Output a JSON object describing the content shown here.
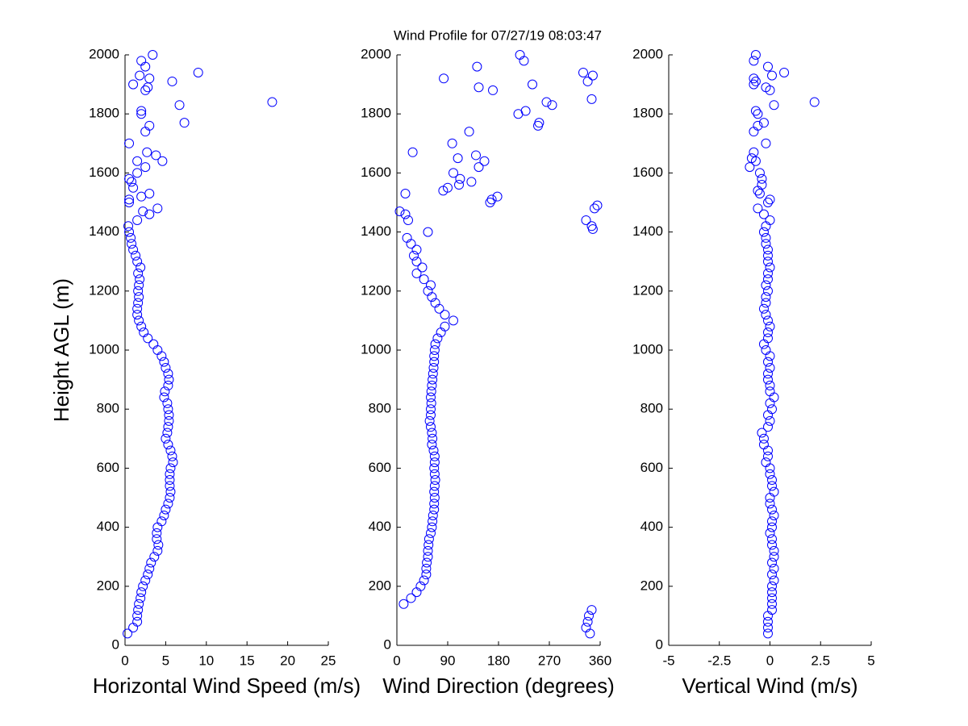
{
  "title": "Wind Profile for  07/27/19 08:03:47",
  "chart_data": [
    {
      "type": "scatter",
      "xlabel": "Horizontal Wind Speed (m/s)",
      "ylabel": "Height AGL (m)",
      "color": "#0000ff",
      "xlim": [
        0,
        25
      ],
      "xticks": [
        0,
        5,
        10,
        15,
        20,
        25
      ],
      "ylim": [
        0,
        2000
      ],
      "yticks": [
        0,
        200,
        400,
        600,
        800,
        1000,
        1200,
        1400,
        1600,
        1800,
        2000
      ],
      "x": [
        0.3,
        1.0,
        1.5,
        1.5,
        1.6,
        1.7,
        1.9,
        2.0,
        2.2,
        2.5,
        2.8,
        3.0,
        3.2,
        3.6,
        4.0,
        4.1,
        3.9,
        3.9,
        4.0,
        4.5,
        4.8,
        5.0,
        5.3,
        5.5,
        5.6,
        5.5,
        5.5,
        5.5,
        5.6,
        5.9,
        5.8,
        5.6,
        5.3,
        5.0,
        5.2,
        5.3,
        5.4,
        5.4,
        5.3,
        5.2,
        4.8,
        4.9,
        5.3,
        5.4,
        5.3,
        5.0,
        4.8,
        4.5,
        4.0,
        3.5,
        2.8,
        2.3,
        2.0,
        1.7,
        1.5,
        1.5,
        1.6,
        1.7,
        1.6,
        1.7,
        1.8,
        1.6,
        1.9,
        1.5,
        1.3,
        1.0,
        0.8,
        0.7,
        0.5,
        0.4,
        1.5,
        3.0,
        2.2,
        4.0,
        0.5,
        0.5,
        2.0,
        3.0,
        1.0,
        0.8,
        0.5,
        1.5,
        2.5,
        1.5,
        4.6,
        3.8,
        2.7,
        0.5,
        2.5,
        3.0,
        7.3,
        2.0,
        2.0,
        6.7,
        18.1,
        2.5,
        2.8,
        1.0,
        5.8,
        3.0,
        1.8,
        9.0,
        2.5,
        2.0,
        3.4
      ],
      "values": [
        40,
        60,
        80,
        100,
        120,
        140,
        160,
        180,
        200,
        220,
        240,
        260,
        280,
        300,
        320,
        340,
        360,
        380,
        400,
        420,
        440,
        460,
        480,
        500,
        520,
        540,
        560,
        580,
        600,
        620,
        640,
        660,
        680,
        700,
        720,
        740,
        760,
        780,
        800,
        820,
        840,
        860,
        880,
        900,
        920,
        940,
        960,
        980,
        1000,
        1020,
        1040,
        1060,
        1080,
        1100,
        1120,
        1140,
        1160,
        1180,
        1200,
        1220,
        1240,
        1260,
        1280,
        1300,
        1320,
        1340,
        1360,
        1380,
        1400,
        1420,
        1440,
        1460,
        1470,
        1480,
        1500,
        1510,
        1520,
        1530,
        1550,
        1570,
        1580,
        1600,
        1620,
        1640,
        1640,
        1660,
        1670,
        1700,
        1740,
        1760,
        1770,
        1800,
        1810,
        1830,
        1840,
        1880,
        1890,
        1900,
        1910,
        1920,
        1930,
        1940,
        1960,
        1980,
        2000
      ]
    },
    {
      "type": "scatter",
      "xlabel": "Wind Direction (degrees)",
      "color": "#0000ff",
      "xlim": [
        0,
        360
      ],
      "xticks": [
        0,
        90,
        180,
        270,
        360
      ],
      "ylim": [
        0,
        2000
      ],
      "yticks": [
        0,
        200,
        400,
        600,
        800,
        1000,
        1200,
        1400,
        1600,
        1800,
        2000
      ],
      "x": [
        342,
        335,
        338,
        340,
        345,
        12,
        25,
        35,
        42,
        48,
        52,
        52,
        53,
        55,
        55,
        56,
        57,
        60,
        62,
        63,
        64,
        66,
        66,
        67,
        66,
        67,
        68,
        67,
        66,
        67,
        67,
        65,
        62,
        63,
        62,
        60,
        58,
        60,
        60,
        61,
        60,
        61,
        62,
        63,
        64,
        65,
        66,
        66,
        67,
        68,
        72,
        78,
        85,
        100,
        85,
        75,
        68,
        62,
        55,
        60,
        48,
        35,
        45,
        35,
        30,
        35,
        25,
        18,
        55,
        347,
        345,
        335,
        20,
        15,
        5,
        350,
        355,
        165,
        168,
        178,
        15,
        82,
        90,
        110,
        132,
        112,
        100,
        145,
        155,
        108,
        140,
        28,
        98,
        128,
        250,
        252,
        215,
        228,
        275,
        265,
        345,
        170,
        145,
        240,
        338,
        83,
        347,
        330,
        142,
        225,
        218
      ],
      "values": [
        40,
        60,
        80,
        100,
        120,
        140,
        160,
        180,
        200,
        220,
        240,
        260,
        280,
        300,
        320,
        340,
        360,
        380,
        400,
        420,
        440,
        460,
        480,
        500,
        520,
        540,
        560,
        580,
        600,
        620,
        640,
        660,
        680,
        700,
        720,
        740,
        760,
        780,
        800,
        820,
        840,
        860,
        880,
        900,
        920,
        940,
        960,
        980,
        1000,
        1020,
        1040,
        1060,
        1080,
        1100,
        1120,
        1140,
        1160,
        1180,
        1200,
        1220,
        1240,
        1260,
        1280,
        1300,
        1320,
        1340,
        1360,
        1380,
        1400,
        1410,
        1420,
        1440,
        1440,
        1460,
        1470,
        1480,
        1490,
        1500,
        1510,
        1520,
        1530,
        1540,
        1550,
        1560,
        1570,
        1580,
        1600,
        1620,
        1640,
        1650,
        1660,
        1670,
        1700,
        1740,
        1760,
        1770,
        1800,
        1810,
        1830,
        1840,
        1850,
        1880,
        1890,
        1900,
        1910,
        1920,
        1930,
        1940,
        1960,
        1980,
        2000
      ]
    },
    {
      "type": "scatter",
      "xlabel": "Vertical Wind (m/s)",
      "color": "#0000ff",
      "xlim": [
        -5,
        5
      ],
      "xticks": [
        -5,
        -2.5,
        0,
        2.5,
        5
      ],
      "ylim": [
        0,
        2000
      ],
      "yticks": [
        0,
        200,
        400,
        600,
        800,
        1000,
        1200,
        1400,
        1600,
        1800,
        2000
      ],
      "x": [
        -0.1,
        -0.1,
        -0.1,
        -0.1,
        0.1,
        0.1,
        0.1,
        0.1,
        0.1,
        0.2,
        0.1,
        0.2,
        0.1,
        0.2,
        0.2,
        0.1,
        0.1,
        0,
        0.1,
        0.1,
        0.2,
        0.1,
        0,
        0,
        0.2,
        0.1,
        0.1,
        0,
        0,
        -0.2,
        -0.1,
        -0.1,
        -0.3,
        -0.3,
        -0.4,
        -0.1,
        0,
        -0.1,
        0.1,
        0,
        0.2,
        0,
        0,
        -0.1,
        -0.1,
        0,
        -0.1,
        0,
        -0.2,
        -0.3,
        -0.1,
        -0.1,
        0,
        -0.1,
        -0.2,
        -0.3,
        -0.2,
        -0.2,
        -0.1,
        -0.2,
        -0.1,
        -0.1,
        0,
        -0.1,
        -0.1,
        -0.1,
        -0.2,
        -0.2,
        -0.3,
        -0.2,
        0,
        -0.3,
        -0.6,
        -0.1,
        0,
        -0.5,
        -0.6,
        -0.4,
        -0.4,
        -0.5,
        -1.0,
        -0.7,
        -0.9,
        -0.8,
        -0.2,
        -0.8,
        -0.6,
        -0.3,
        -0.6,
        -0.7,
        0.2,
        2.2,
        0,
        -0.2,
        -0.8,
        -0.7,
        -0.8,
        0.1,
        0.7,
        -0.1,
        -0.8,
        -0.7
      ],
      "values": [
        40,
        60,
        80,
        100,
        120,
        140,
        160,
        180,
        200,
        220,
        240,
        260,
        280,
        300,
        320,
        340,
        360,
        380,
        400,
        420,
        440,
        460,
        480,
        500,
        520,
        540,
        560,
        580,
        600,
        620,
        640,
        660,
        680,
        700,
        720,
        740,
        760,
        780,
        800,
        820,
        840,
        860,
        880,
        900,
        920,
        940,
        960,
        980,
        1000,
        1020,
        1040,
        1060,
        1080,
        1100,
        1120,
        1140,
        1160,
        1180,
        1200,
        1220,
        1240,
        1260,
        1280,
        1300,
        1320,
        1340,
        1360,
        1380,
        1400,
        1420,
        1440,
        1460,
        1480,
        1500,
        1510,
        1530,
        1540,
        1560,
        1580,
        1600,
        1620,
        1640,
        1650,
        1670,
        1700,
        1740,
        1760,
        1770,
        1800,
        1810,
        1830,
        1840,
        1880,
        1890,
        1900,
        1910,
        1920,
        1930,
        1940,
        1960,
        1980,
        2000
      ]
    }
  ]
}
